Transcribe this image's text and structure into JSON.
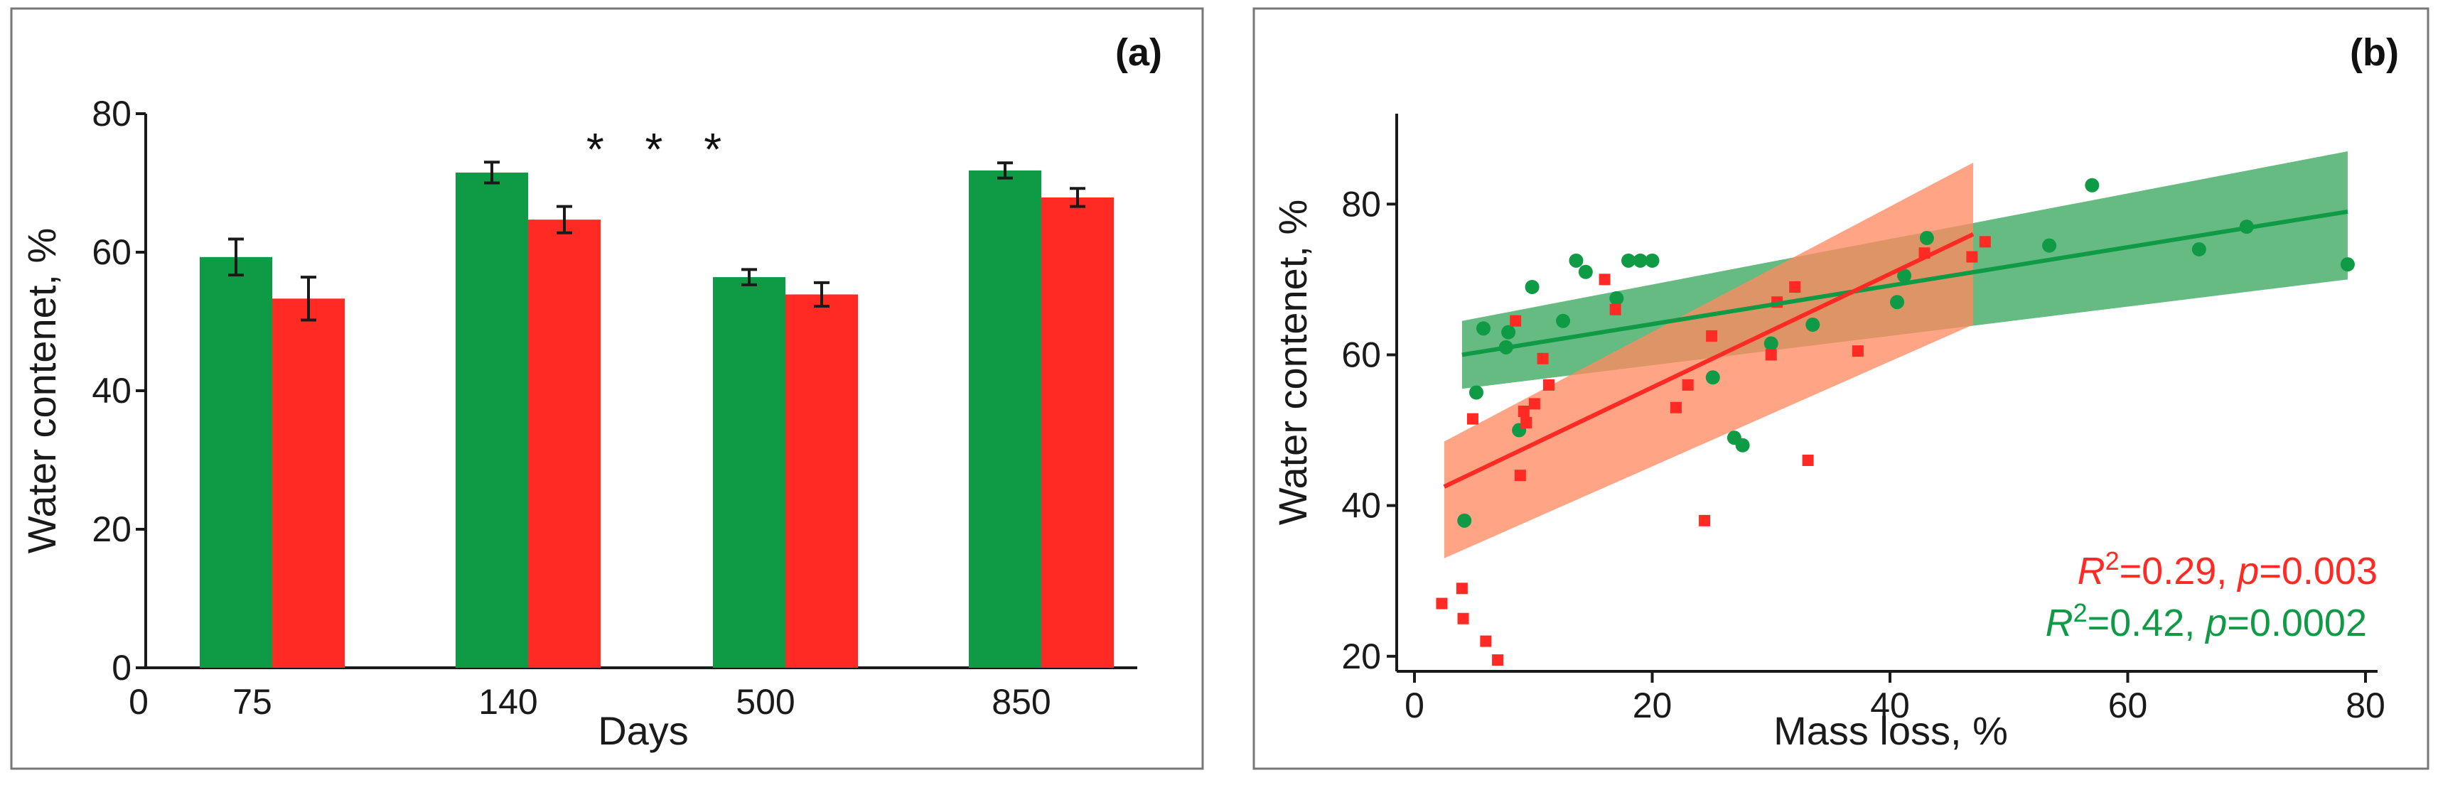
{
  "chart_data": [
    {
      "type": "bar",
      "panel_label": "(a)",
      "xlabel": "Days",
      "ylabel": "Water contenet, %",
      "x_origin_label": "0",
      "categories": [
        "75",
        "140",
        "500",
        "850"
      ],
      "ylim": [
        0,
        80
      ],
      "yticks": [
        0,
        20,
        40,
        60,
        80
      ],
      "series": [
        {
          "name": "green",
          "color": "#0f9a46",
          "values": [
            59.3,
            71.5,
            56.4,
            71.8
          ],
          "errors": [
            2.6,
            1.5,
            1.1,
            1.1
          ]
        },
        {
          "name": "red",
          "color": "#ff2a24",
          "values": [
            53.3,
            64.7,
            53.9,
            67.9
          ],
          "errors": [
            3.1,
            1.9,
            1.7,
            1.3
          ]
        }
      ],
      "annotation": "* * *"
    },
    {
      "type": "scatter",
      "panel_label": "(b)",
      "xlabel": "Mass loss, %",
      "ylabel": "Water contenet, %",
      "xlim": [
        0,
        80
      ],
      "ylim": [
        18,
        92
      ],
      "xticks": [
        0,
        20,
        40,
        60,
        80
      ],
      "yticks": [
        20,
        40,
        60,
        80
      ],
      "series": [
        {
          "name": "green",
          "color": "#0f9a46",
          "band_color": "#3aa85e",
          "marker": "circle",
          "fit": {
            "x": [
              4,
              78.5
            ],
            "y": [
              60,
              79
            ]
          },
          "band": {
            "x": [
              4,
              78.5
            ],
            "upper": [
              64.5,
              87
            ],
            "lower": [
              55.5,
              70
            ]
          },
          "stats": {
            "r2_prefix": "R",
            "r2_sup": "2",
            "r2_value": "=0.42",
            "p_sep": ", ",
            "p_italic": "p",
            "p_value": "=0.0002"
          },
          "points": [
            [
              4.2,
              38
            ],
            [
              5.2,
              55
            ],
            [
              5.8,
              63.5
            ],
            [
              7.7,
              61
            ],
            [
              7.9,
              63
            ],
            [
              8.8,
              50
            ],
            [
              9.9,
              69
            ],
            [
              12.5,
              64.5
            ],
            [
              13.6,
              72.5
            ],
            [
              14.4,
              71
            ],
            [
              17.0,
              67.5
            ],
            [
              18.0,
              72.5
            ],
            [
              19.0,
              72.5
            ],
            [
              20.0,
              72.5
            ],
            [
              25.1,
              57
            ],
            [
              26.9,
              49
            ],
            [
              27.6,
              48
            ],
            [
              30.0,
              61.5
            ],
            [
              33.5,
              64
            ],
            [
              40.6,
              67
            ],
            [
              41.2,
              70.5
            ],
            [
              43.1,
              75.5
            ],
            [
              53.4,
              74.5
            ],
            [
              57.0,
              82.5
            ],
            [
              66.0,
              74
            ],
            [
              70.0,
              77
            ],
            [
              78.5,
              72
            ]
          ]
        },
        {
          "name": "red",
          "color": "#ff2a24",
          "band_color": "#ff8a62",
          "marker": "square",
          "fit": {
            "x": [
              2.5,
              47
            ],
            "y": [
              42.5,
              76
            ]
          },
          "band": {
            "x": [
              2.5,
              47
            ],
            "upper": [
              48.5,
              85.5
            ],
            "lower": [
              33,
              64
            ]
          },
          "stats": {
            "r2_prefix": "R",
            "r2_sup": "2",
            "r2_value": "=0.29",
            "p_sep": ", ",
            "p_italic": "p",
            "p_value": "=0.003"
          },
          "points": [
            [
              2.3,
              27
            ],
            [
              4.0,
              29
            ],
            [
              4.1,
              25
            ],
            [
              4.9,
              51.5
            ],
            [
              6.0,
              22
            ],
            [
              7.0,
              19.5
            ],
            [
              8.5,
              64.5
            ],
            [
              8.9,
              44
            ],
            [
              9.2,
              52.5
            ],
            [
              9.4,
              51
            ],
            [
              10.1,
              53.5
            ],
            [
              10.8,
              59.5
            ],
            [
              11.3,
              56
            ],
            [
              16.0,
              70
            ],
            [
              16.9,
              66
            ],
            [
              22.0,
              53
            ],
            [
              23.0,
              56
            ],
            [
              24.4,
              38
            ],
            [
              25.0,
              62.5
            ],
            [
              30.0,
              60
            ],
            [
              30.5,
              67
            ],
            [
              32.0,
              69
            ],
            [
              33.1,
              46
            ],
            [
              37.3,
              60.5
            ],
            [
              42.9,
              73.5
            ],
            [
              46.9,
              73
            ],
            [
              48.0,
              75
            ]
          ]
        }
      ]
    }
  ]
}
